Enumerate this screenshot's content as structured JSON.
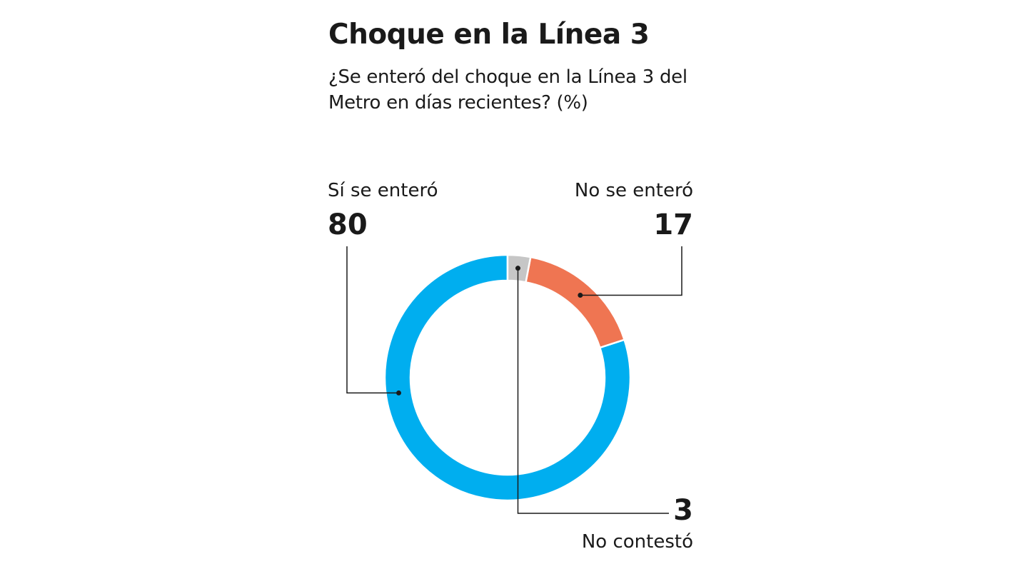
{
  "chart_data": {
    "type": "pie",
    "variant": "donut",
    "title": "Choque en la Línea 3",
    "subtitle": "¿Se enteró del choque en la Línea 3 del Metro en días recientes?  (%)",
    "slices": [
      {
        "label": "Sí se enteró",
        "value": 80,
        "display": "80",
        "color": "#00AEEF"
      },
      {
        "label": "No se enteró",
        "value": 17,
        "display": "17",
        "color": "#EF7552"
      },
      {
        "label": "No contestó",
        "value": 3,
        "display": "3",
        "color": "#C6C6C6"
      }
    ]
  }
}
